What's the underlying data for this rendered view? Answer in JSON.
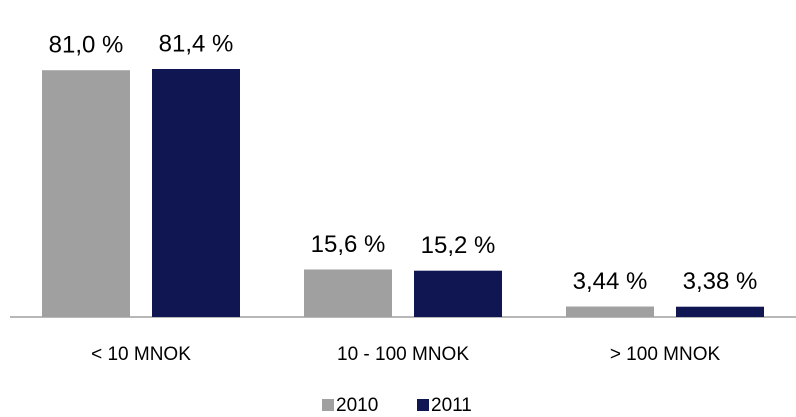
{
  "chart_data": {
    "type": "bar",
    "categories": [
      "< 10 MNOK",
      "10 - 100 MNOK",
      "> 100 MNOK"
    ],
    "series": [
      {
        "name": "2010",
        "color": "#a0a0a0",
        "values": [
          81.0,
          15.6,
          3.44
        ],
        "value_labels": [
          "81,0 %",
          "15,6 %",
          "3,44 %"
        ]
      },
      {
        "name": "2011",
        "color": "#0f1652",
        "values": [
          81.4,
          15.2,
          3.38
        ],
        "value_labels": [
          "81,4 %",
          "15,2 %",
          "3,38 %"
        ]
      }
    ],
    "legend": "bottom"
  }
}
